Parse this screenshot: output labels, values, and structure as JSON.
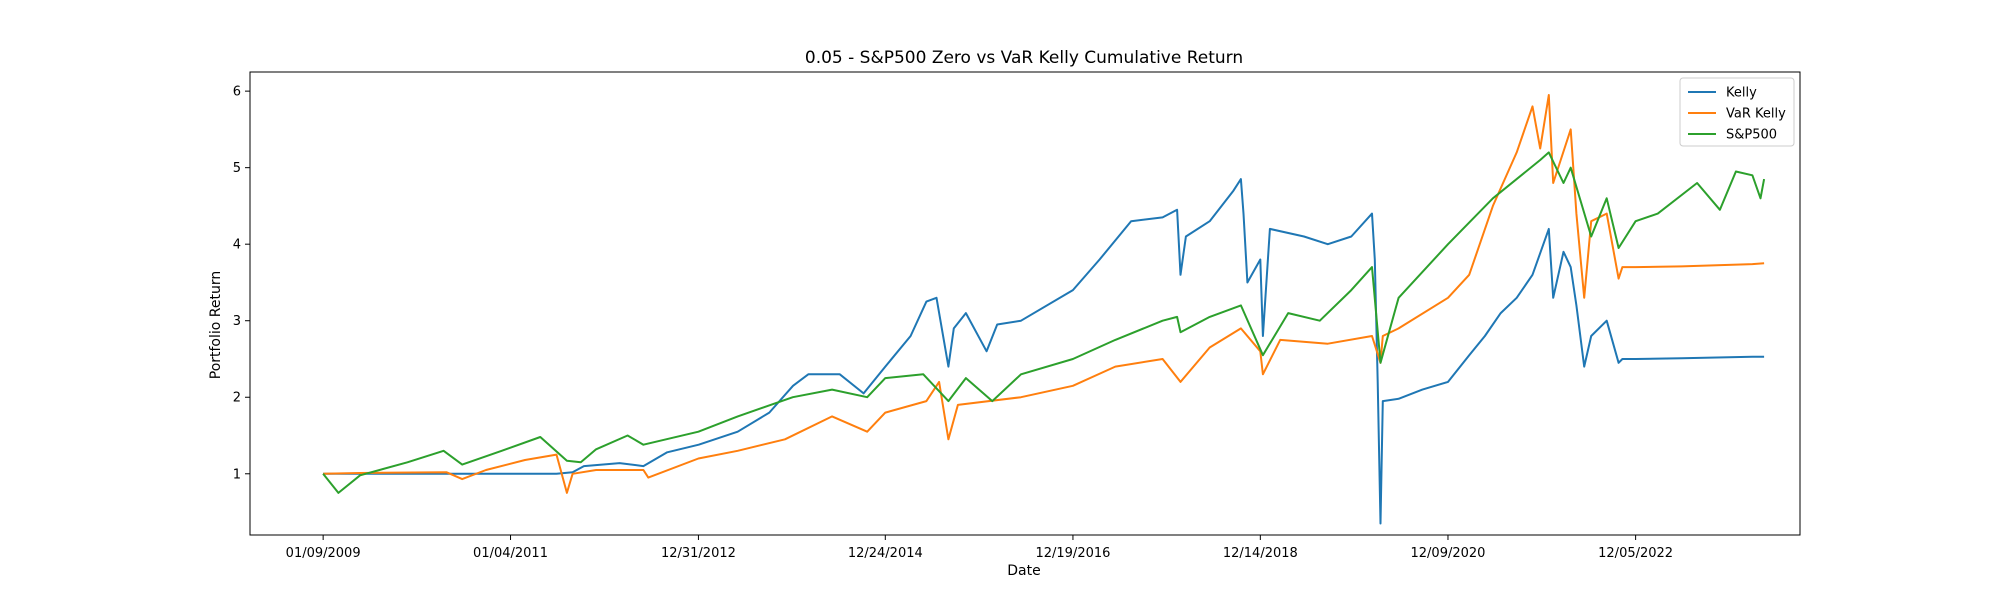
{
  "chart_data": {
    "type": "line",
    "title": "0.05 - S&P500 Zero vs VaR Kelly Cumulative Return",
    "xlabel": "Date",
    "ylabel": "Portfolio Return",
    "x_ticks": [
      "01/09/2009",
      "01/04/2011",
      "12/31/2012",
      "12/24/2014",
      "12/19/2016",
      "12/14/2018",
      "12/09/2020",
      "12/05/2022"
    ],
    "y_ticks": [
      1,
      2,
      3,
      4,
      5,
      6
    ],
    "ylim": [
      0.2,
      6.25
    ],
    "xlim": [
      "2008-04-01",
      "2024-09-01"
    ],
    "grid": false,
    "legend_position": "top-right",
    "series": [
      {
        "name": "Kelly",
        "color": "#1f77b4",
        "points": [
          [
            "2009-01-09",
            1.0
          ],
          [
            "2011-07-01",
            1.0
          ],
          [
            "2011-09-01",
            1.02
          ],
          [
            "2011-10-15",
            1.1
          ],
          [
            "2012-03-01",
            1.14
          ],
          [
            "2012-06-01",
            1.1
          ],
          [
            "2012-09-01",
            1.28
          ],
          [
            "2013-01-01",
            1.38
          ],
          [
            "2013-06-01",
            1.55
          ],
          [
            "2013-10-01",
            1.8
          ],
          [
            "2014-01-01",
            2.15
          ],
          [
            "2014-03-01",
            2.3
          ],
          [
            "2014-07-01",
            2.3
          ],
          [
            "2014-10-01",
            2.05
          ],
          [
            "2014-12-24",
            2.4
          ],
          [
            "2015-04-01",
            2.8
          ],
          [
            "2015-06-01",
            3.25
          ],
          [
            "2015-07-10",
            3.3
          ],
          [
            "2015-08-25",
            2.4
          ],
          [
            "2015-09-15",
            2.9
          ],
          [
            "2015-11-01",
            3.1
          ],
          [
            "2016-01-20",
            2.6
          ],
          [
            "2016-03-01",
            2.95
          ],
          [
            "2016-06-01",
            3.0
          ],
          [
            "2016-12-19",
            3.4
          ],
          [
            "2017-04-01",
            3.8
          ],
          [
            "2017-08-01",
            4.3
          ],
          [
            "2017-12-01",
            4.35
          ],
          [
            "2018-01-26",
            4.45
          ],
          [
            "2018-02-08",
            3.6
          ],
          [
            "2018-03-01",
            4.1
          ],
          [
            "2018-06-01",
            4.3
          ],
          [
            "2018-09-01",
            4.7
          ],
          [
            "2018-09-30",
            4.85
          ],
          [
            "2018-10-10",
            4.4
          ],
          [
            "2018-10-25",
            3.5
          ],
          [
            "2018-12-14",
            3.8
          ],
          [
            "2018-12-24",
            2.8
          ],
          [
            "2019-01-20",
            4.2
          ],
          [
            "2019-06-01",
            4.1
          ],
          [
            "2019-09-01",
            4.0
          ],
          [
            "2019-12-01",
            4.1
          ],
          [
            "2020-02-19",
            4.4
          ],
          [
            "2020-03-01",
            3.8
          ],
          [
            "2020-03-12",
            2.2
          ],
          [
            "2020-03-23",
            0.35
          ],
          [
            "2020-04-01",
            1.95
          ],
          [
            "2020-06-01",
            1.98
          ],
          [
            "2020-09-01",
            2.1
          ],
          [
            "2020-12-09",
            2.2
          ],
          [
            "2021-03-01",
            2.55
          ],
          [
            "2021-05-01",
            2.8
          ],
          [
            "2021-07-01",
            3.1
          ],
          [
            "2021-09-01",
            3.3
          ],
          [
            "2021-11-01",
            3.6
          ],
          [
            "2022-01-03",
            4.2
          ],
          [
            "2022-01-20",
            3.3
          ],
          [
            "2022-03-01",
            3.9
          ],
          [
            "2022-03-29",
            3.7
          ],
          [
            "2022-04-20",
            3.2
          ],
          [
            "2022-05-20",
            2.4
          ],
          [
            "2022-06-16",
            2.8
          ],
          [
            "2022-08-15",
            3.0
          ],
          [
            "2022-09-30",
            2.45
          ],
          [
            "2022-10-15",
            2.5
          ],
          [
            "2022-12-05",
            2.5
          ],
          [
            "2023-06-01",
            2.51
          ],
          [
            "2024-03-01",
            2.53
          ],
          [
            "2024-04-15",
            2.53
          ]
        ]
      },
      {
        "name": "VaR Kelly",
        "color": "#ff7f0e",
        "points": [
          [
            "2009-01-09",
            1.0
          ],
          [
            "2009-06-01",
            1.01
          ],
          [
            "2010-05-01",
            1.02
          ],
          [
            "2010-07-01",
            0.93
          ],
          [
            "2010-10-01",
            1.05
          ],
          [
            "2011-03-01",
            1.18
          ],
          [
            "2011-07-01",
            1.25
          ],
          [
            "2011-08-10",
            0.75
          ],
          [
            "2011-09-01",
            1.0
          ],
          [
            "2011-12-01",
            1.05
          ],
          [
            "2012-06-01",
            1.05
          ],
          [
            "2012-06-20",
            0.95
          ],
          [
            "2012-12-31",
            1.2
          ],
          [
            "2013-06-01",
            1.3
          ],
          [
            "2013-12-01",
            1.45
          ],
          [
            "2014-06-01",
            1.75
          ],
          [
            "2014-10-15",
            1.55
          ],
          [
            "2014-12-24",
            1.8
          ],
          [
            "2015-06-01",
            1.95
          ],
          [
            "2015-07-20",
            2.2
          ],
          [
            "2015-08-25",
            1.45
          ],
          [
            "2015-10-01",
            1.9
          ],
          [
            "2016-06-01",
            2.0
          ],
          [
            "2016-12-19",
            2.15
          ],
          [
            "2017-06-01",
            2.4
          ],
          [
            "2017-12-01",
            2.5
          ],
          [
            "2018-02-08",
            2.2
          ],
          [
            "2018-06-01",
            2.65
          ],
          [
            "2018-09-30",
            2.9
          ],
          [
            "2018-12-14",
            2.6
          ],
          [
            "2018-12-24",
            2.3
          ],
          [
            "2019-03-01",
            2.75
          ],
          [
            "2019-09-01",
            2.7
          ],
          [
            "2020-02-19",
            2.8
          ],
          [
            "2020-03-23",
            2.45
          ],
          [
            "2020-04-01",
            2.8
          ],
          [
            "2020-06-01",
            2.9
          ],
          [
            "2020-12-09",
            3.3
          ],
          [
            "2021-03-01",
            3.6
          ],
          [
            "2021-06-01",
            4.5
          ],
          [
            "2021-09-01",
            5.2
          ],
          [
            "2021-11-01",
            5.8
          ],
          [
            "2021-12-01",
            5.25
          ],
          [
            "2022-01-03",
            5.95
          ],
          [
            "2022-01-20",
            4.8
          ],
          [
            "2022-03-29",
            5.5
          ],
          [
            "2022-04-20",
            4.4
          ],
          [
            "2022-05-20",
            3.3
          ],
          [
            "2022-06-16",
            4.3
          ],
          [
            "2022-08-15",
            4.4
          ],
          [
            "2022-09-30",
            3.55
          ],
          [
            "2022-10-15",
            3.7
          ],
          [
            "2022-12-05",
            3.7
          ],
          [
            "2023-06-01",
            3.71
          ],
          [
            "2024-03-01",
            3.74
          ],
          [
            "2024-04-15",
            3.75
          ]
        ]
      },
      {
        "name": "S&P500",
        "color": "#2ca02c",
        "points": [
          [
            "2009-01-09",
            1.0
          ],
          [
            "2009-03-09",
            0.75
          ],
          [
            "2009-06-01",
            0.98
          ],
          [
            "2009-12-01",
            1.15
          ],
          [
            "2010-04-20",
            1.3
          ],
          [
            "2010-07-01",
            1.12
          ],
          [
            "2010-12-01",
            1.3
          ],
          [
            "2011-04-29",
            1.48
          ],
          [
            "2011-08-10",
            1.17
          ],
          [
            "2011-10-03",
            1.15
          ],
          [
            "2011-12-01",
            1.32
          ],
          [
            "2012-04-01",
            1.5
          ],
          [
            "2012-06-01",
            1.38
          ],
          [
            "2012-12-31",
            1.55
          ],
          [
            "2013-06-01",
            1.75
          ],
          [
            "2013-12-31",
            2.0
          ],
          [
            "2014-06-01",
            2.1
          ],
          [
            "2014-10-15",
            2.0
          ],
          [
            "2014-12-24",
            2.25
          ],
          [
            "2015-05-20",
            2.3
          ],
          [
            "2015-08-25",
            1.95
          ],
          [
            "2015-11-01",
            2.25
          ],
          [
            "2016-02-11",
            1.95
          ],
          [
            "2016-06-01",
            2.3
          ],
          [
            "2016-12-19",
            2.5
          ],
          [
            "2017-06-01",
            2.75
          ],
          [
            "2017-12-01",
            3.0
          ],
          [
            "2018-01-26",
            3.05
          ],
          [
            "2018-02-08",
            2.85
          ],
          [
            "2018-06-01",
            3.05
          ],
          [
            "2018-09-30",
            3.2
          ],
          [
            "2018-12-24",
            2.55
          ],
          [
            "2019-04-01",
            3.1
          ],
          [
            "2019-08-01",
            3.0
          ],
          [
            "2019-12-01",
            3.4
          ],
          [
            "2020-02-19",
            3.7
          ],
          [
            "2020-03-23",
            2.45
          ],
          [
            "2020-06-01",
            3.3
          ],
          [
            "2020-12-09",
            4.0
          ],
          [
            "2021-06-01",
            4.6
          ],
          [
            "2021-12-01",
            5.1
          ],
          [
            "2022-01-03",
            5.2
          ],
          [
            "2022-03-01",
            4.8
          ],
          [
            "2022-03-29",
            5.0
          ],
          [
            "2022-06-16",
            4.1
          ],
          [
            "2022-08-15",
            4.6
          ],
          [
            "2022-09-30",
            3.95
          ],
          [
            "2022-12-05",
            4.3
          ],
          [
            "2023-03-01",
            4.4
          ],
          [
            "2023-07-31",
            4.8
          ],
          [
            "2023-10-27",
            4.45
          ],
          [
            "2023-12-28",
            4.95
          ],
          [
            "2024-03-01",
            4.9
          ],
          [
            "2024-04-01",
            4.6
          ],
          [
            "2024-04-15",
            4.85
          ]
        ]
      }
    ]
  }
}
